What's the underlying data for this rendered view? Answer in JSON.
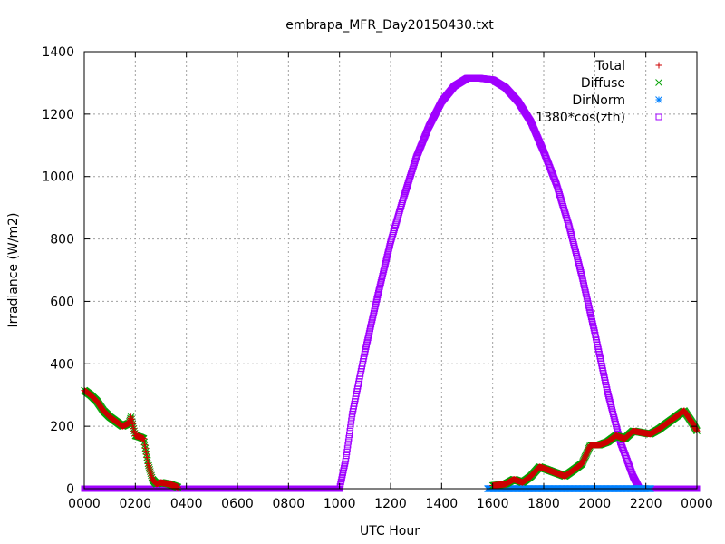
{
  "chart_data": {
    "type": "scatter",
    "title": "embrapa_MFR_Day20150430.txt",
    "xlabel": "UTC Hour",
    "ylabel": "Irradiance (W/m2)",
    "xlim": [
      0,
      24
    ],
    "ylim": [
      0,
      1400
    ],
    "x_ticks": [
      0,
      2,
      4,
      6,
      8,
      10,
      12,
      14,
      16,
      18,
      20,
      22,
      24
    ],
    "x_tick_labels": [
      "0000",
      "0200",
      "0400",
      "0600",
      "0800",
      "1000",
      "1200",
      "1400",
      "1600",
      "1800",
      "2000",
      "2200",
      "0000"
    ],
    "y_ticks": [
      0,
      200,
      400,
      600,
      800,
      1000,
      1200,
      1400
    ],
    "y_tick_labels": [
      "0",
      "200",
      "400",
      "600",
      "800",
      "1000",
      "1200",
      "1400"
    ],
    "grid": true,
    "legend_position": "top-right",
    "series": [
      {
        "name": "Total",
        "marker": "plus",
        "color": "#cc0000",
        "x": [
          0,
          0.25,
          0.5,
          0.75,
          1.0,
          1.25,
          1.5,
          1.75,
          1.83,
          2.0,
          2.2,
          2.33,
          2.5,
          2.67,
          2.83,
          3.0,
          3.33,
          3.67,
          16.0,
          16.5,
          16.83,
          17.17,
          17.5,
          17.83,
          18.17,
          18.5,
          18.83,
          19.17,
          19.5,
          19.83,
          20.17,
          20.5,
          20.83,
          21.17,
          21.5,
          21.83,
          22.17,
          22.5,
          22.83,
          23.17,
          23.5,
          23.83,
          24.0
        ],
        "y": [
          315,
          300,
          280,
          250,
          230,
          215,
          200,
          210,
          230,
          170,
          165,
          160,
          80,
          30,
          15,
          20,
          15,
          5,
          10,
          15,
          30,
          20,
          40,
          70,
          60,
          50,
          40,
          60,
          80,
          140,
          140,
          150,
          170,
          160,
          185,
          180,
          175,
          190,
          210,
          230,
          250,
          210,
          185
        ]
      },
      {
        "name": "Diffuse",
        "marker": "cross",
        "color": "#00a000",
        "x": [
          0,
          0.25,
          0.5,
          0.75,
          1.0,
          1.25,
          1.5,
          1.75,
          1.83,
          2.0,
          2.2,
          2.33,
          2.5,
          2.67,
          2.83,
          3.0,
          3.33,
          3.67,
          16.0,
          16.5,
          16.83,
          17.17,
          17.5,
          17.83,
          18.17,
          18.5,
          18.83,
          19.17,
          19.5,
          19.83,
          20.17,
          20.5,
          20.83,
          21.17,
          21.5,
          21.83,
          22.17,
          22.5,
          22.83,
          23.17,
          23.5,
          23.83,
          24.0
        ],
        "y": [
          315,
          300,
          280,
          250,
          230,
          215,
          200,
          210,
          230,
          170,
          165,
          160,
          80,
          30,
          15,
          20,
          15,
          5,
          10,
          15,
          30,
          20,
          40,
          70,
          60,
          50,
          40,
          60,
          80,
          140,
          140,
          150,
          170,
          160,
          185,
          180,
          175,
          190,
          210,
          230,
          250,
          210,
          185
        ]
      },
      {
        "name": "DirNorm",
        "marker": "star",
        "color": "#0080ff",
        "x": [
          15.8,
          16.0,
          16.5,
          17.0,
          17.5,
          18.0,
          18.5,
          19.0,
          19.5,
          20.0,
          20.5,
          21.0,
          21.5,
          22.0,
          22.2
        ],
        "y": [
          0,
          0,
          0,
          0,
          0,
          0,
          0,
          0,
          0,
          0,
          0,
          0,
          0,
          0,
          0
        ]
      },
      {
        "name": "1380*cos(zth)",
        "marker": "square",
        "color": "#a000ff",
        "x": [
          0,
          1,
          2,
          3,
          4,
          5,
          6,
          7,
          8,
          9,
          10.0,
          10.25,
          10.5,
          11.0,
          11.5,
          12.0,
          12.5,
          13.0,
          13.5,
          14.0,
          14.5,
          15.0,
          15.5,
          16.0,
          16.5,
          17.0,
          17.5,
          18.0,
          18.5,
          19.0,
          19.5,
          20.0,
          20.5,
          21.0,
          21.5,
          21.75,
          22.0,
          23,
          24
        ],
        "y": [
          0,
          0,
          0,
          0,
          0,
          0,
          0,
          0,
          0,
          0,
          0,
          95,
          240,
          440,
          620,
          790,
          930,
          1060,
          1160,
          1240,
          1290,
          1315,
          1315,
          1310,
          1285,
          1240,
          1175,
          1080,
          975,
          840,
          680,
          500,
          310,
          150,
          40,
          0,
          0,
          0,
          0
        ]
      }
    ]
  }
}
